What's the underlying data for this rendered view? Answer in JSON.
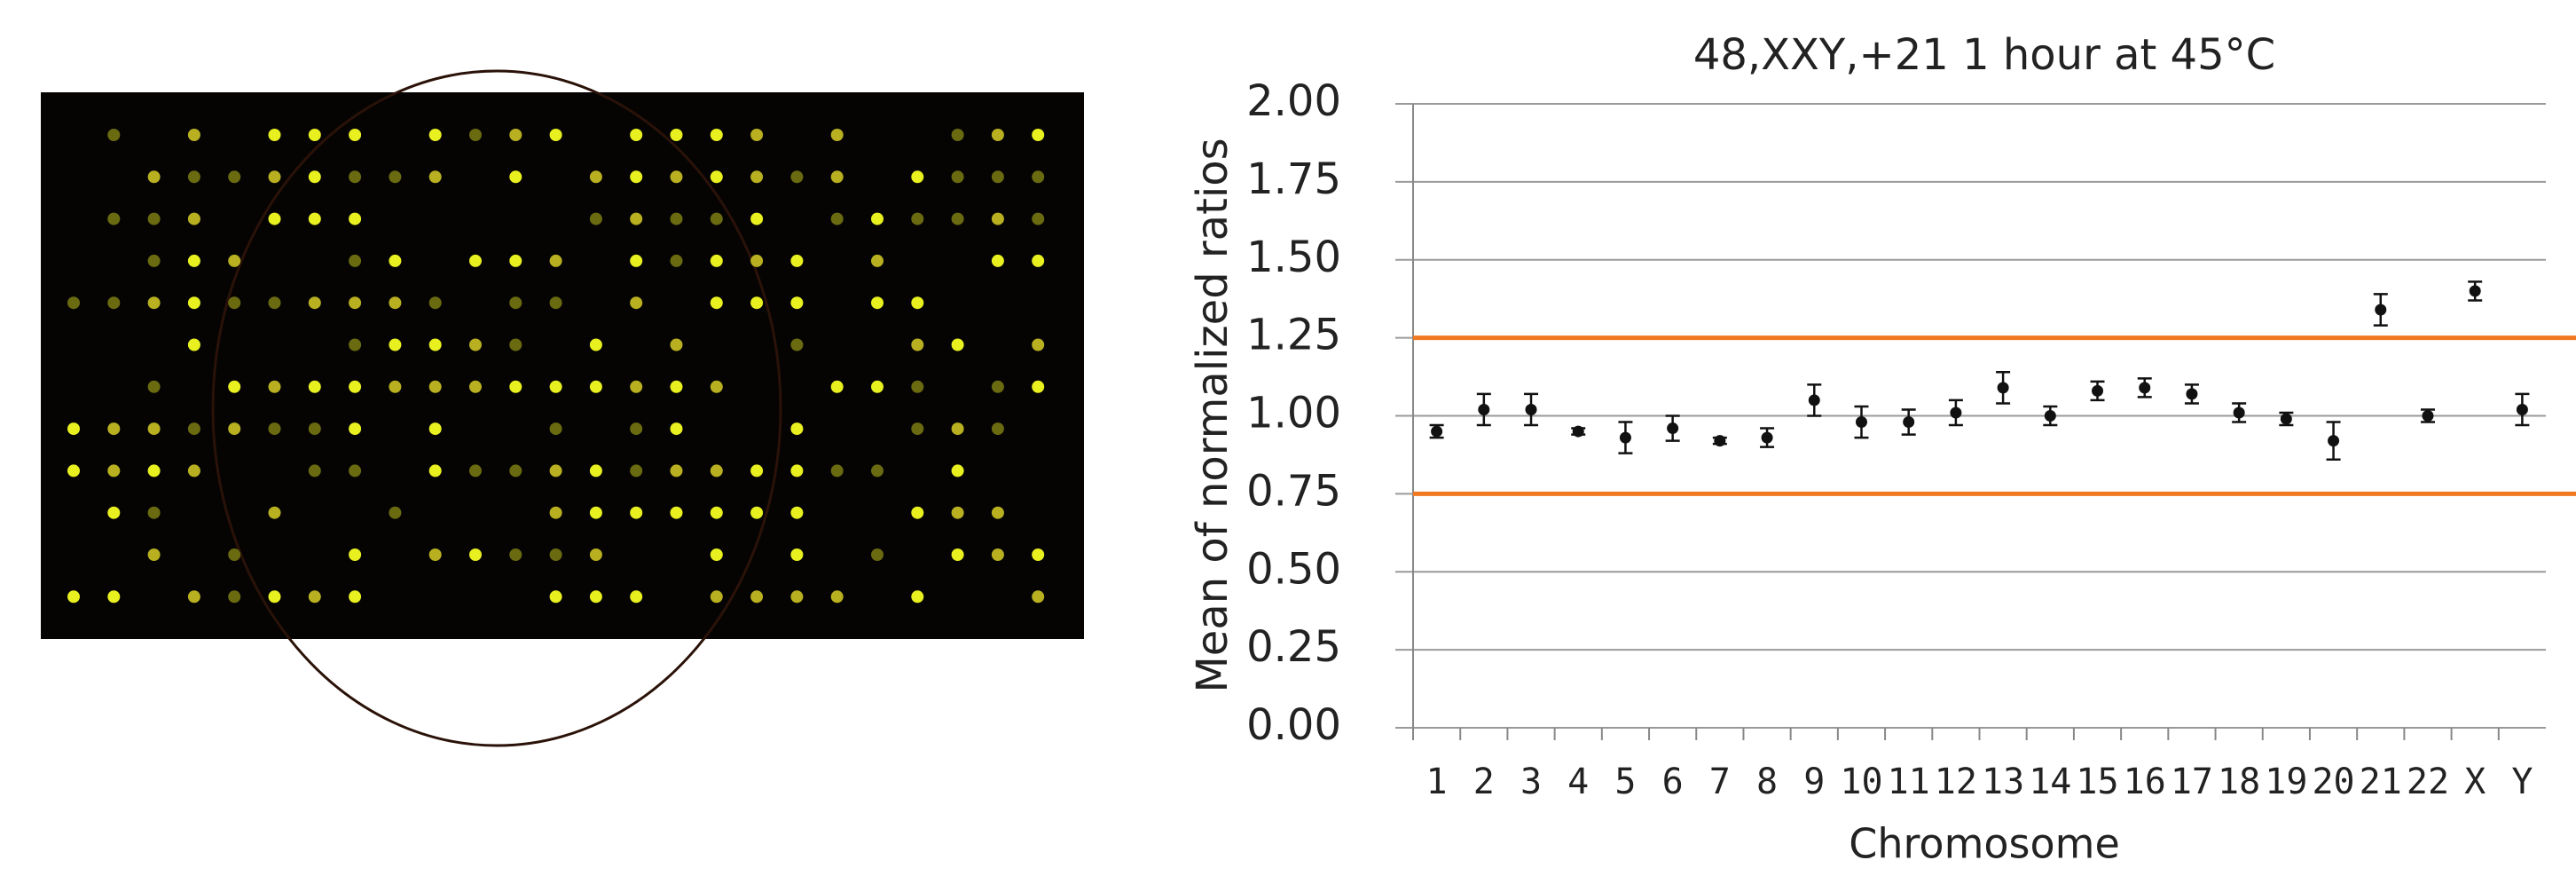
{
  "chart_data": {
    "type": "scatter",
    "title": "48,XXY,+21 1 hour at 45°C",
    "x_label": "Chromosome",
    "y_label": "Mean of normalized ratios",
    "categories": [
      "1",
      "2",
      "3",
      "4",
      "5",
      "6",
      "7",
      "8",
      "9",
      "10",
      "11",
      "12",
      "13",
      "14",
      "15",
      "16",
      "17",
      "18",
      "19",
      "20",
      "21",
      "22",
      "X",
      "Y"
    ],
    "values": [
      0.95,
      1.02,
      1.02,
      0.95,
      0.93,
      0.96,
      0.92,
      0.93,
      1.05,
      0.98,
      0.98,
      1.01,
      1.09,
      1.0,
      1.08,
      1.09,
      1.07,
      1.01,
      0.99,
      0.92,
      1.34,
      1.0,
      1.4,
      1.02
    ],
    "errors": [
      0.02,
      0.05,
      0.05,
      0.01,
      0.05,
      0.04,
      0.01,
      0.03,
      0.05,
      0.05,
      0.04,
      0.04,
      0.05,
      0.03,
      0.03,
      0.03,
      0.03,
      0.03,
      0.02,
      0.06,
      0.05,
      0.02,
      0.03,
      0.05
    ],
    "color": "#111111",
    "reference_lines": [
      {
        "value": 1.25,
        "color": "#f07820"
      },
      {
        "value": 0.75,
        "color": "#f07820"
      }
    ],
    "ylim": [
      0,
      2
    ],
    "yticks": [
      {
        "value": 0,
        "label": "0.00"
      },
      {
        "value": 0.25,
        "label": "0.25"
      },
      {
        "value": 0.5,
        "label": "0.50"
      },
      {
        "value": 0.75,
        "label": "0.75"
      },
      {
        "value": 1,
        "label": "1.00"
      },
      {
        "value": 1.25,
        "label": "1.25"
      },
      {
        "value": 1.5,
        "label": "1.50"
      },
      {
        "value": 1.75,
        "label": "1.75"
      },
      {
        "value": 2,
        "label": "2.00"
      }
    ],
    "grid": true
  }
}
